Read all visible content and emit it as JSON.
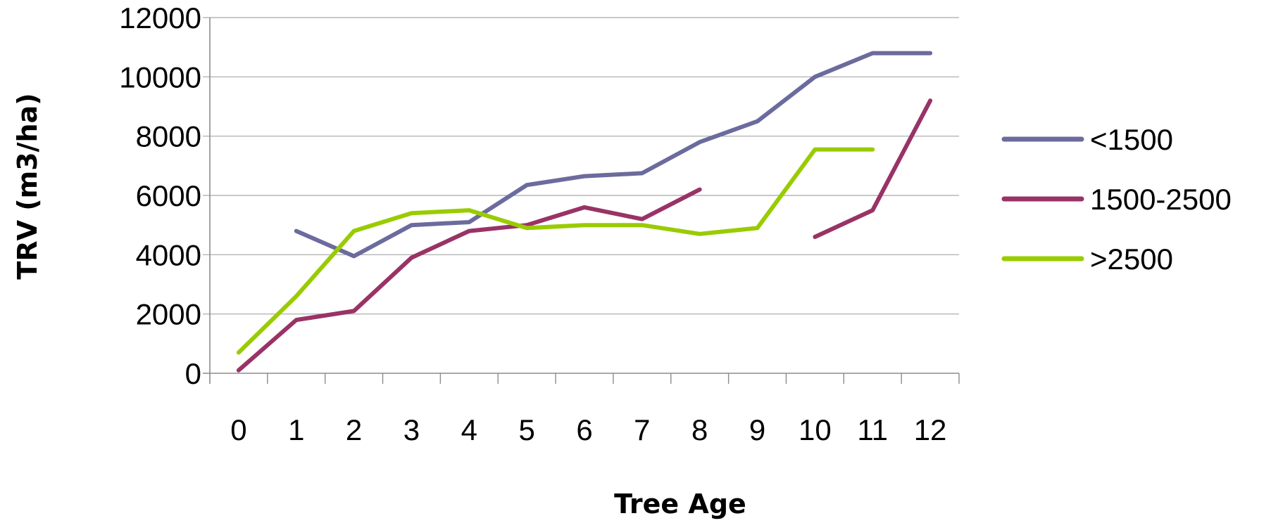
{
  "chart_data": {
    "type": "line",
    "xlabel": "Tree Age",
    "ylabel": "TRV (m3/ha)",
    "categories": [
      "0",
      "1",
      "2",
      "3",
      "4",
      "5",
      "6",
      "7",
      "8",
      "9",
      "10",
      "11",
      "12"
    ],
    "ylim": [
      0,
      12000
    ],
    "yticks": [
      "0",
      "2000",
      "4000",
      "6000",
      "8000",
      "10000",
      "12000"
    ],
    "grid": "horizontal",
    "legend_position": "right",
    "series": [
      {
        "name": "<1500",
        "color": "#6B6B9E",
        "values": [
          null,
          4800,
          3950,
          5000,
          5100,
          6350,
          6650,
          6750,
          7800,
          8500,
          10000,
          10800,
          10800
        ]
      },
      {
        "name": "1500-2500",
        "color": "#993366",
        "values": [
          100,
          1800,
          2100,
          3900,
          4800,
          5000,
          5600,
          5200,
          6200,
          null,
          4600,
          5500,
          9200
        ]
      },
      {
        "name": ">2500",
        "color": "#99CC00",
        "values": [
          700,
          2600,
          4800,
          5400,
          5500,
          4900,
          5000,
          5000,
          4700,
          4900,
          7550,
          7550,
          null
        ]
      }
    ]
  }
}
